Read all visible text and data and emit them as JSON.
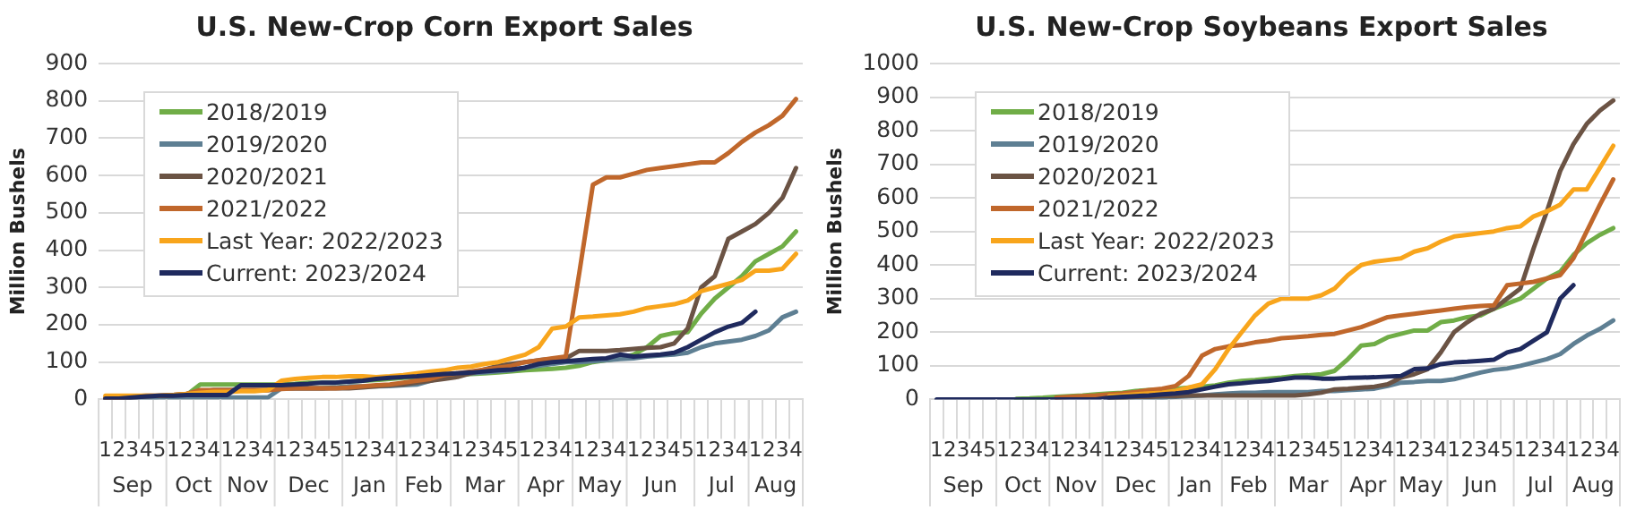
{
  "chart_data": [
    {
      "type": "line",
      "title": "U.S. New-Crop Corn Export Sales",
      "ylabel": "Million Bushels",
      "grid": "y",
      "legend": "top left",
      "ylim": [
        0,
        900
      ],
      "yticks": [
        0,
        100,
        200,
        300,
        400,
        500,
        600,
        700,
        800,
        900
      ],
      "categories": [
        "1",
        "2",
        "3",
        "4",
        "5",
        "1",
        "2",
        "3",
        "4",
        "1",
        "2",
        "3",
        "4",
        "1",
        "2",
        "3",
        "4",
        "5",
        "1",
        "2",
        "3",
        "4",
        "1",
        "2",
        "3",
        "4",
        "1",
        "2",
        "3",
        "4",
        "5",
        "1",
        "2",
        "3",
        "4",
        "1",
        "2",
        "3",
        "4",
        "1",
        "2",
        "3",
        "4",
        "5",
        "1",
        "2",
        "3",
        "4",
        "1",
        "2",
        "3",
        "4"
      ],
      "annotations": [
        "Sep",
        "Oct",
        "Nov",
        "Dec",
        "Jan",
        "Feb",
        "Mar",
        "Apr",
        "May",
        "Jun",
        "Jul",
        "Aug"
      ],
      "series": [
        {
          "name": "2018/2019",
          "color": "#70ad47",
          "values": [
            null,
            null,
            null,
            null,
            null,
            12,
            12,
            40,
            40,
            40,
            40,
            40,
            40,
            40,
            42,
            45,
            45,
            45,
            48,
            50,
            52,
            55,
            58,
            60,
            62,
            64,
            66,
            68,
            70,
            72,
            75,
            78,
            80,
            82,
            85,
            90,
            100,
            105,
            110,
            120,
            140,
            170,
            178,
            180,
            230,
            270,
            300,
            330,
            370,
            390,
            410,
            450
          ]
        },
        {
          "name": "2019/2020",
          "color": "#5e7f93",
          "values": [
            0,
            0,
            2,
            3,
            5,
            5,
            5,
            5,
            5,
            5,
            5,
            5,
            5,
            30,
            30,
            30,
            30,
            32,
            35,
            35,
            35,
            36,
            38,
            40,
            50,
            60,
            65,
            70,
            72,
            75,
            78,
            85,
            90,
            95,
            100,
            100,
            102,
            105,
            108,
            110,
            115,
            118,
            120,
            125,
            140,
            150,
            155,
            160,
            170,
            185,
            220,
            235
          ]
        },
        {
          "name": "2020/2021",
          "color": "#6b5344",
          "values": [
            2,
            3,
            5,
            8,
            10,
            12,
            15,
            20,
            25,
            25,
            25,
            25,
            25,
            30,
            30,
            30,
            30,
            30,
            30,
            32,
            35,
            38,
            40,
            45,
            50,
            55,
            60,
            70,
            80,
            90,
            95,
            100,
            105,
            108,
            110,
            130,
            130,
            130,
            132,
            135,
            138,
            140,
            150,
            190,
            300,
            330,
            430,
            450,
            470,
            500,
            540,
            620
          ]
        },
        {
          "name": "2021/2022",
          "color": "#c0672b",
          "values": [
            5,
            5,
            8,
            10,
            10,
            12,
            15,
            25,
            25,
            25,
            25,
            25,
            25,
            28,
            30,
            30,
            30,
            30,
            32,
            35,
            38,
            40,
            45,
            50,
            55,
            65,
            70,
            75,
            80,
            85,
            90,
            100,
            105,
            110,
            115,
            340,
            575,
            595,
            595,
            605,
            615,
            620,
            625,
            630,
            635,
            635,
            660,
            690,
            715,
            735,
            760,
            805
          ]
        },
        {
          "name": "Last Year: 2022/2023",
          "color": "#f8a51c",
          "values": [
            10,
            10,
            10,
            10,
            10,
            12,
            15,
            18,
            20,
            20,
            22,
            22,
            25,
            50,
            55,
            58,
            60,
            60,
            62,
            62,
            60,
            62,
            65,
            70,
            75,
            78,
            85,
            88,
            95,
            100,
            110,
            120,
            140,
            190,
            195,
            220,
            222,
            225,
            228,
            235,
            245,
            250,
            255,
            265,
            290,
            300,
            310,
            320,
            345,
            345,
            350,
            390
          ]
        },
        {
          "name": "Current: 2023/2024",
          "color": "#1f2a5e",
          "values": [
            2,
            2,
            5,
            8,
            10,
            10,
            12,
            12,
            12,
            12,
            38,
            38,
            38,
            38,
            40,
            42,
            45,
            45,
            48,
            50,
            55,
            58,
            60,
            62,
            65,
            68,
            70,
            72,
            75,
            78,
            80,
            85,
            95,
            100,
            102,
            105,
            108,
            110,
            120,
            115,
            118,
            120,
            125,
            140,
            160,
            180,
            195,
            205,
            235,
            null,
            null,
            null
          ]
        }
      ]
    },
    {
      "type": "line",
      "title": "U.S. New-Crop Soybeans Export Sales",
      "ylabel": "Million Bushels",
      "grid": "y",
      "legend": "top left",
      "ylim": [
        0,
        1000
      ],
      "yticks": [
        0,
        100,
        200,
        300,
        400,
        500,
        600,
        700,
        800,
        900,
        1000
      ],
      "categories": [
        "1",
        "2",
        "3",
        "4",
        "5",
        "1",
        "2",
        "3",
        "4",
        "1",
        "2",
        "3",
        "4",
        "1",
        "2",
        "3",
        "4",
        "5",
        "1",
        "2",
        "3",
        "4",
        "1",
        "2",
        "3",
        "4",
        "1",
        "2",
        "3",
        "4",
        "5",
        "1",
        "2",
        "3",
        "4",
        "1",
        "2",
        "3",
        "4",
        "1",
        "2",
        "3",
        "4",
        "5",
        "1",
        "2",
        "3",
        "4",
        "1",
        "2",
        "3",
        "4"
      ],
      "annotations": [
        "Sep",
        "Oct",
        "Nov",
        "Dec",
        "Jan",
        "Feb",
        "Mar",
        "Apr",
        "May",
        "Jun",
        "Jul",
        "Aug"
      ],
      "series": [
        {
          "name": "2018/2019",
          "color": "#70ad47",
          "values": [
            null,
            null,
            null,
            null,
            null,
            null,
            2,
            3,
            5,
            8,
            10,
            12,
            15,
            18,
            20,
            25,
            28,
            30,
            32,
            35,
            38,
            42,
            50,
            55,
            58,
            62,
            65,
            70,
            72,
            75,
            85,
            120,
            160,
            165,
            185,
            195,
            205,
            205,
            230,
            235,
            245,
            250,
            270,
            285,
            300,
            330,
            360,
            380,
            430,
            465,
            490,
            510
          ]
        },
        {
          "name": "2019/2020",
          "color": "#5e7f93",
          "values": [
            null,
            null,
            null,
            null,
            null,
            null,
            null,
            null,
            null,
            null,
            null,
            null,
            null,
            2,
            3,
            5,
            5,
            5,
            8,
            10,
            12,
            15,
            18,
            20,
            20,
            22,
            22,
            22,
            22,
            25,
            25,
            28,
            30,
            32,
            40,
            50,
            52,
            55,
            55,
            60,
            70,
            80,
            88,
            92,
            100,
            110,
            120,
            135,
            165,
            190,
            210,
            235
          ]
        },
        {
          "name": "2020/2021",
          "color": "#6b5344",
          "values": [
            null,
            null,
            null,
            null,
            null,
            null,
            null,
            null,
            null,
            null,
            null,
            null,
            null,
            5,
            5,
            8,
            8,
            10,
            10,
            12,
            12,
            12,
            12,
            12,
            12,
            12,
            12,
            12,
            15,
            20,
            30,
            32,
            35,
            38,
            45,
            65,
            75,
            90,
            140,
            200,
            230,
            255,
            270,
            300,
            330,
            450,
            560,
            680,
            760,
            820,
            860,
            890
          ]
        },
        {
          "name": "2021/2022",
          "color": "#c0672b",
          "values": [
            null,
            null,
            null,
            null,
            null,
            null,
            null,
            null,
            null,
            5,
            8,
            10,
            12,
            15,
            18,
            22,
            28,
            32,
            40,
            70,
            130,
            150,
            158,
            162,
            170,
            175,
            182,
            185,
            188,
            192,
            195,
            205,
            215,
            230,
            245,
            250,
            255,
            260,
            265,
            270,
            275,
            278,
            280,
            340,
            345,
            350,
            360,
            370,
            420,
            500,
            580,
            655
          ]
        },
        {
          "name": "Last Year: 2022/2023",
          "color": "#f8a51c",
          "values": [
            null,
            null,
            null,
            null,
            null,
            null,
            null,
            null,
            null,
            null,
            null,
            null,
            null,
            10,
            12,
            15,
            18,
            20,
            25,
            35,
            45,
            90,
            150,
            200,
            250,
            285,
            300,
            300,
            300,
            310,
            330,
            370,
            400,
            410,
            415,
            420,
            440,
            450,
            470,
            485,
            490,
            495,
            500,
            510,
            515,
            545,
            560,
            580,
            625,
            625,
            690,
            755
          ]
        },
        {
          "name": "Current: 2023/2024",
          "color": "#1f2a5e",
          "values": [
            0,
            0,
            0,
            0,
            0,
            0,
            0,
            0,
            0,
            0,
            0,
            0,
            0,
            5,
            8,
            10,
            12,
            15,
            18,
            22,
            30,
            38,
            45,
            48,
            52,
            55,
            60,
            65,
            65,
            62,
            62,
            64,
            65,
            66,
            68,
            70,
            90,
            92,
            105,
            110,
            112,
            115,
            118,
            140,
            150,
            175,
            200,
            300,
            340,
            null,
            null,
            null
          ]
        }
      ]
    }
  ]
}
